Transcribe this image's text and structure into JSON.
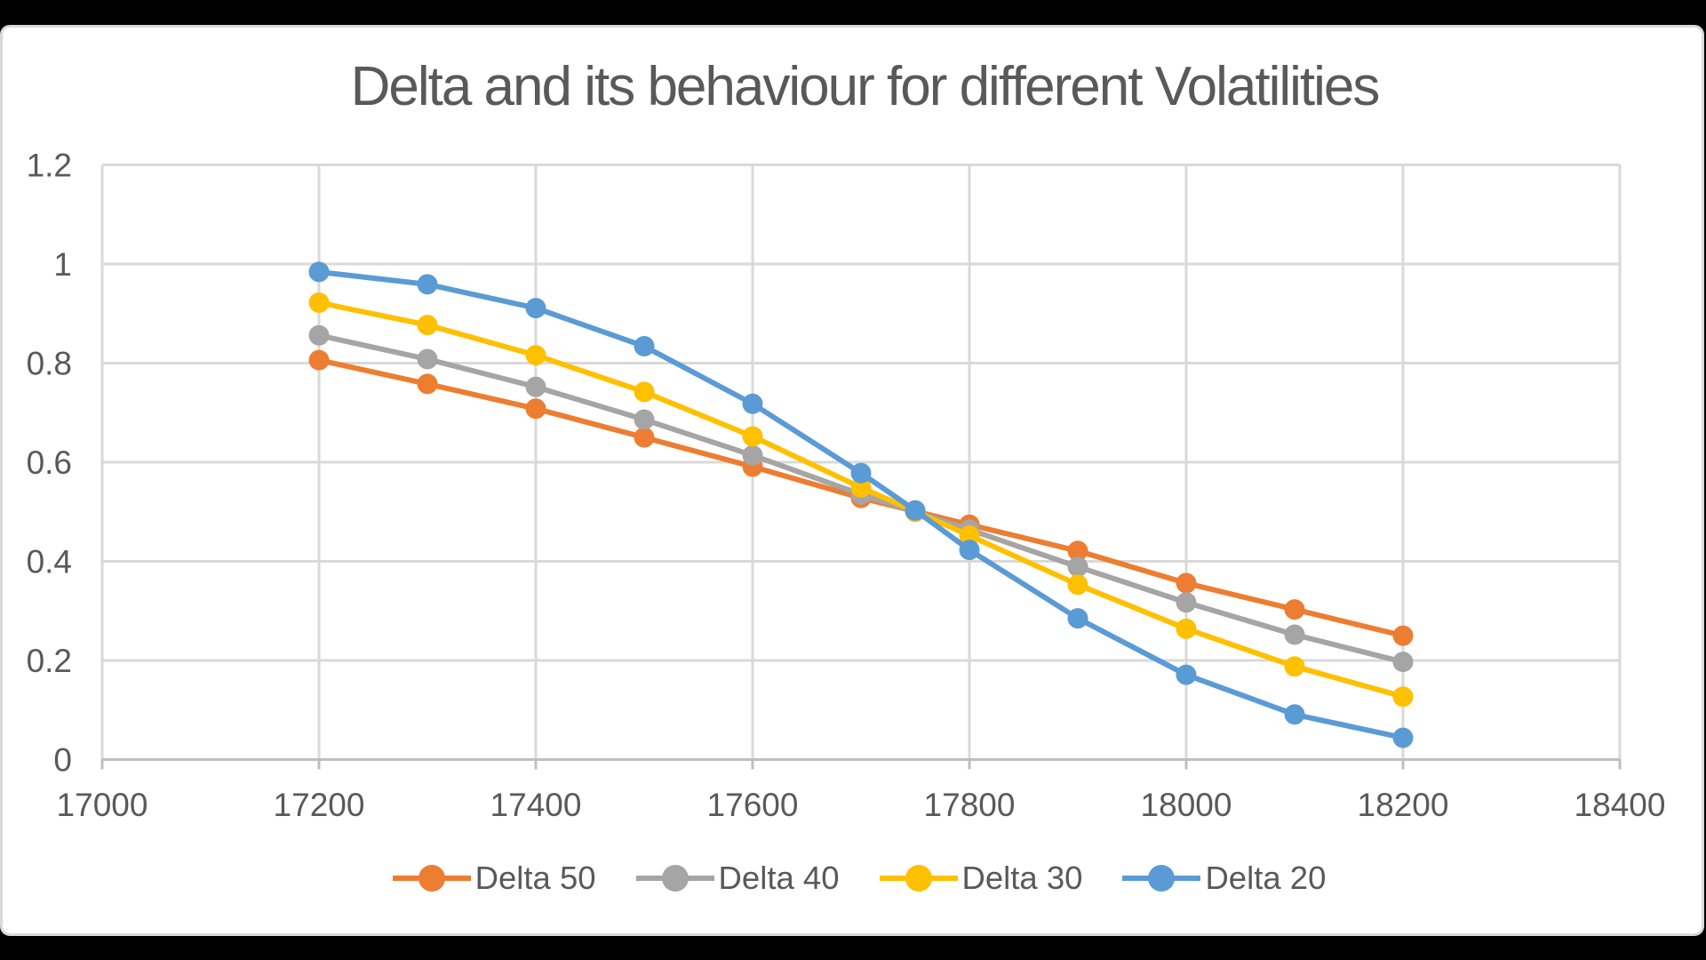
{
  "colors": {
    "page_background": "#000000",
    "card_background": "#ffffff",
    "card_border": "#d9d9d9",
    "gridline": "#d9d9d9",
    "axis_line": "#bfbfbf",
    "text": "#595959"
  },
  "chart_data": {
    "type": "line",
    "title": "Delta and its behaviour for different Volatilities",
    "xlabel": "",
    "ylabel": "",
    "grid": true,
    "legend_position": "bottom",
    "marker": "circle",
    "x": [
      17200,
      17300,
      17400,
      17500,
      17600,
      17700,
      17750,
      17800,
      17900,
      18000,
      18100,
      18200
    ],
    "series": [
      {
        "name": "Delta 50",
        "color": "#ED7D31",
        "values": [
          0.806,
          0.758,
          0.708,
          0.65,
          0.591,
          0.528,
          0.501,
          0.474,
          0.421,
          0.356,
          0.303,
          0.25
        ]
      },
      {
        "name": "Delta 40",
        "color": "#A5A5A5",
        "values": [
          0.856,
          0.808,
          0.752,
          0.686,
          0.614,
          0.535,
          0.5,
          0.464,
          0.389,
          0.317,
          0.252,
          0.197
        ]
      },
      {
        "name": "Delta 30",
        "color": "#FFC000",
        "values": [
          0.922,
          0.877,
          0.816,
          0.742,
          0.652,
          0.549,
          0.501,
          0.452,
          0.353,
          0.264,
          0.188,
          0.127
        ]
      },
      {
        "name": "Delta 20",
        "color": "#5B9BD5",
        "values": [
          0.984,
          0.959,
          0.911,
          0.834,
          0.718,
          0.578,
          0.503,
          0.423,
          0.285,
          0.171,
          0.091,
          0.044
        ]
      }
    ],
    "x_axis": {
      "min": 17000,
      "max": 18400,
      "step": 200,
      "tick_labels": [
        "17000",
        "17200",
        "17400",
        "17600",
        "17800",
        "18000",
        "18200",
        "18400"
      ]
    },
    "y_axis": {
      "min": 0,
      "max": 1.2,
      "step": 0.2,
      "tick_labels": [
        "0",
        "0.2",
        "0.4",
        "0.6",
        "0.8",
        "1",
        "1.2"
      ]
    }
  }
}
